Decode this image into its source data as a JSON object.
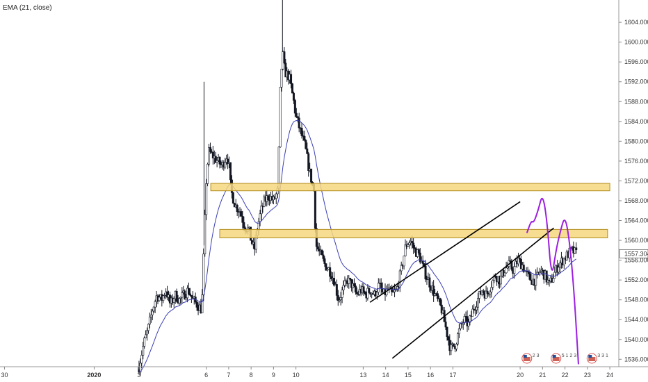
{
  "legend": {
    "indicator": "EMA (21, close)"
  },
  "colors": {
    "background": "#ffffff",
    "candle": "#131722",
    "ema": "#3b3fb5",
    "zone_fill": "#f6d77f",
    "zone_stroke": "#b08a1a",
    "forecast": "#9b1fe0",
    "channel": "#000000",
    "price_label_bg": "#ffffff"
  },
  "chart_data": {
    "type": "candlestick",
    "ylim": [
      1534.5,
      1608.5
    ],
    "y_ticks": [
      1536.0,
      1540.0,
      1544.0,
      1548.0,
      1552.0,
      1556.0,
      1560.0,
      1564.0,
      1568.0,
      1572.0,
      1576.0,
      1580.0,
      1584.0,
      1588.0,
      1592.0,
      1596.0,
      1600.0,
      1604.0
    ],
    "y_tick_labels": [
      "1536.000",
      "1540.000",
      "1544.000",
      "1548.000",
      "1552.000",
      "1556.000",
      "1560.000",
      "1564.000",
      "1568.000",
      "1572.000",
      "1576.000",
      "1580.000",
      "1584.000",
      "1588.000",
      "1592.000",
      "1596.000",
      "1600.000",
      "1604.000"
    ],
    "x_ticks": [
      {
        "label": "30",
        "day": -3,
        "bold": false
      },
      {
        "label": "2020",
        "day": 1,
        "bold": true
      },
      {
        "label": "3",
        "day": 3,
        "bold": false
      },
      {
        "label": "6",
        "day": 6,
        "bold": false
      },
      {
        "label": "7",
        "day": 7,
        "bold": false
      },
      {
        "label": "8",
        "day": 8,
        "bold": false
      },
      {
        "label": "9",
        "day": 9,
        "bold": false
      },
      {
        "label": "10",
        "day": 10,
        "bold": false
      },
      {
        "label": "13",
        "day": 13,
        "bold": false
      },
      {
        "label": "14",
        "day": 14,
        "bold": false
      },
      {
        "label": "15",
        "day": 15,
        "bold": false
      },
      {
        "label": "16",
        "day": 16,
        "bold": false
      },
      {
        "label": "17",
        "day": 17,
        "bold": false
      },
      {
        "label": "20",
        "day": 20,
        "bold": false
      },
      {
        "label": "21",
        "day": 21,
        "bold": false
      },
      {
        "label": "22",
        "day": 22,
        "bold": false
      },
      {
        "label": "23",
        "day": 23,
        "bold": false
      },
      {
        "label": "24",
        "day": 24,
        "bold": false
      }
    ],
    "x_domain_days": [
      -3.2,
      24.4
    ],
    "current_price": "1557.304",
    "price_path": [
      [
        3.0,
        1534.5
      ],
      [
        3.2,
        1539
      ],
      [
        3.4,
        1542
      ],
      [
        3.6,
        1546
      ],
      [
        3.8,
        1549
      ],
      [
        4.0,
        1548
      ],
      [
        4.2,
        1550
      ],
      [
        4.4,
        1547
      ],
      [
        4.6,
        1549
      ],
      [
        4.8,
        1548
      ],
      [
        5.0,
        1549
      ],
      [
        5.2,
        1550
      ],
      [
        5.4,
        1548
      ],
      [
        5.6,
        1547
      ],
      [
        5.8,
        1546
      ],
      [
        6.0,
        1572
      ],
      [
        6.1,
        1578
      ],
      [
        6.3,
        1577
      ],
      [
        6.5,
        1576
      ],
      [
        6.7,
        1575
      ],
      [
        6.9,
        1577
      ],
      [
        7.0,
        1576
      ],
      [
        7.1,
        1570
      ],
      [
        7.3,
        1567
      ],
      [
        7.5,
        1566
      ],
      [
        7.7,
        1563
      ],
      [
        7.9,
        1562
      ],
      [
        8.0,
        1560
      ],
      [
        8.15,
        1558
      ],
      [
        8.3,
        1563
      ],
      [
        8.45,
        1566
      ],
      [
        8.6,
        1568
      ],
      [
        8.8,
        1569
      ],
      [
        9.0,
        1568
      ],
      [
        9.2,
        1570
      ],
      [
        9.3,
        1590
      ],
      [
        9.4,
        1598
      ],
      [
        9.5,
        1594
      ],
      [
        9.7,
        1593
      ],
      [
        9.9,
        1588
      ],
      [
        10.0,
        1585
      ],
      [
        10.2,
        1582
      ],
      [
        10.4,
        1579
      ],
      [
        10.6,
        1574
      ],
      [
        10.8,
        1570
      ],
      [
        10.9,
        1559
      ],
      [
        11.1,
        1557
      ],
      [
        11.3,
        1555
      ],
      [
        11.5,
        1554
      ],
      [
        11.7,
        1552
      ],
      [
        11.9,
        1548
      ],
      [
        12.1,
        1550
      ],
      [
        12.3,
        1552
      ],
      [
        12.5,
        1551
      ],
      [
        12.7,
        1549
      ],
      [
        12.9,
        1550
      ],
      [
        13.1,
        1549
      ],
      [
        13.3,
        1550
      ],
      [
        13.5,
        1549
      ],
      [
        13.7,
        1551
      ],
      [
        13.9,
        1549
      ],
      [
        14.1,
        1550
      ],
      [
        14.3,
        1549
      ],
      [
        14.5,
        1550
      ],
      [
        14.7,
        1554
      ],
      [
        14.9,
        1559
      ],
      [
        15.1,
        1560
      ],
      [
        15.3,
        1558
      ],
      [
        15.5,
        1557
      ],
      [
        15.7,
        1554
      ],
      [
        15.9,
        1552
      ],
      [
        16.1,
        1550
      ],
      [
        16.3,
        1548
      ],
      [
        16.5,
        1546
      ],
      [
        16.7,
        1542
      ],
      [
        16.9,
        1538
      ],
      [
        17.1,
        1539
      ],
      [
        17.3,
        1542
      ],
      [
        17.5,
        1544
      ],
      [
        17.7,
        1543
      ],
      [
        17.9,
        1546
      ],
      [
        18.1,
        1548
      ],
      [
        18.3,
        1550
      ],
      [
        18.5,
        1549
      ],
      [
        18.7,
        1551
      ],
      [
        18.9,
        1553
      ],
      [
        19.1,
        1552
      ],
      [
        19.3,
        1554
      ],
      [
        19.5,
        1555
      ],
      [
        19.7,
        1554
      ],
      [
        19.9,
        1556
      ],
      [
        20.1,
        1555
      ],
      [
        20.3,
        1553
      ],
      [
        20.5,
        1552
      ],
      [
        20.7,
        1552
      ],
      [
        20.9,
        1554
      ],
      [
        21.1,
        1553
      ],
      [
        21.3,
        1551
      ],
      [
        21.5,
        1553
      ],
      [
        21.7,
        1555
      ],
      [
        21.9,
        1556
      ],
      [
        22.1,
        1557
      ],
      [
        22.3,
        1558
      ],
      [
        22.5,
        1557.3
      ]
    ],
    "zones": [
      {
        "x0": 6.2,
        "x1": 24.0,
        "y0": 1570.0,
        "y1": 1571.5
      },
      {
        "x0": 6.6,
        "x1": 23.9,
        "y0": 1560.5,
        "y1": 1562.2
      }
    ],
    "channel_lines": [
      {
        "x0": 13.3,
        "y0": 1547.5,
        "x1": 20.0,
        "y1": 1567.8
      },
      {
        "x0": 14.3,
        "y0": 1536.2,
        "x1": 21.5,
        "y1": 1562.5
      }
    ],
    "forecast_path": [
      [
        20.3,
        1561.5
      ],
      [
        20.5,
        1564.0
      ],
      [
        20.6,
        1563.5
      ],
      [
        20.8,
        1566.0
      ],
      [
        21.0,
        1569.5
      ],
      [
        21.2,
        1564.0
      ],
      [
        21.4,
        1552.0
      ],
      [
        21.6,
        1558.0
      ],
      [
        21.8,
        1562.0
      ],
      [
        22.0,
        1565.0
      ],
      [
        22.2,
        1560.0
      ],
      [
        22.4,
        1550.0
      ],
      [
        22.6,
        1535.0
      ]
    ],
    "event_markers": [
      {
        "day": 20.3,
        "text": "2 3"
      },
      {
        "day": 21.6,
        "text": "5 1  2 3"
      },
      {
        "day": 23.2,
        "text": "3 3 1"
      }
    ]
  }
}
